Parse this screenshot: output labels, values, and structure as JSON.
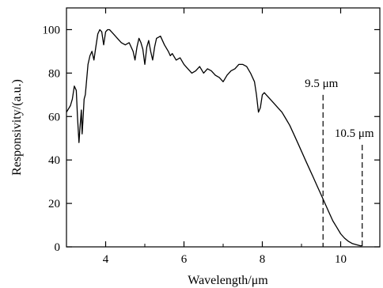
{
  "chart_data": {
    "type": "line",
    "xlabel": "Wavelength/μm",
    "ylabel": "Responsivity/(a.u.)",
    "xlim": [
      3.0,
      11.0
    ],
    "ylim": [
      0,
      110
    ],
    "xticks": [
      4,
      6,
      8,
      10
    ],
    "xtick_labels": [
      "4",
      "6",
      "8",
      "10"
    ],
    "yticks": [
      0,
      20,
      40,
      60,
      80,
      100
    ],
    "ytick_labels": [
      "0",
      "20",
      "40",
      "60",
      "80",
      "100"
    ],
    "grid": false,
    "series": [
      {
        "x": [
          3.0,
          3.1,
          3.15,
          3.2,
          3.25,
          3.28,
          3.32,
          3.35,
          3.38,
          3.4,
          3.42,
          3.45,
          3.48,
          3.5,
          3.55,
          3.6,
          3.65,
          3.7,
          3.75,
          3.8,
          3.85,
          3.9,
          3.95,
          4.0,
          4.05,
          4.1,
          4.15,
          4.2,
          4.3,
          4.4,
          4.5,
          4.6,
          4.7,
          4.75,
          4.8,
          4.85,
          4.9,
          4.95,
          5.0,
          5.05,
          5.1,
          5.15,
          5.2,
          5.25,
          5.3,
          5.4,
          5.5,
          5.6,
          5.65,
          5.7,
          5.8,
          5.9,
          6.0,
          6.1,
          6.2,
          6.3,
          6.4,
          6.5,
          6.6,
          6.7,
          6.8,
          6.9,
          7.0,
          7.1,
          7.2,
          7.3,
          7.4,
          7.5,
          7.6,
          7.7,
          7.8,
          7.85,
          7.9,
          7.95,
          8.0,
          8.05,
          8.1,
          8.2,
          8.3,
          8.4,
          8.5,
          8.6,
          8.7,
          8.8,
          8.9,
          9.0,
          9.1,
          9.2,
          9.3,
          9.4,
          9.5,
          9.6,
          9.7,
          9.8,
          9.9,
          10.0,
          10.1,
          10.2,
          10.3,
          10.4,
          10.5,
          10.55
        ],
        "y": [
          62,
          65,
          68,
          74,
          72,
          60,
          48,
          56,
          63,
          52,
          58,
          68,
          70,
          74,
          84,
          88,
          90,
          86,
          92,
          98,
          100,
          99,
          93,
          99,
          100,
          100,
          99,
          98,
          96,
          94,
          93,
          94,
          90,
          86,
          92,
          96,
          94,
          91,
          84,
          92,
          95,
          90,
          86,
          92,
          96,
          97,
          93,
          90,
          88,
          89,
          86,
          87,
          84,
          82,
          80,
          81,
          83,
          80,
          82,
          81,
          79,
          78,
          76,
          79,
          81,
          82,
          84,
          84,
          83,
          80,
          76,
          70,
          62,
          64,
          70,
          71,
          70,
          68,
          66,
          64,
          62,
          59,
          56,
          52,
          48,
          44,
          40,
          36,
          32,
          28,
          24,
          20,
          16,
          12,
          9,
          6,
          4,
          2.5,
          1.5,
          1,
          0.5,
          0.5
        ]
      }
    ],
    "annotations": [
      {
        "label": "9.5 μm",
        "x": 9.55,
        "y_top": 70
      },
      {
        "label": "10.5 μm",
        "x": 10.55,
        "y_top": 47
      }
    ]
  }
}
